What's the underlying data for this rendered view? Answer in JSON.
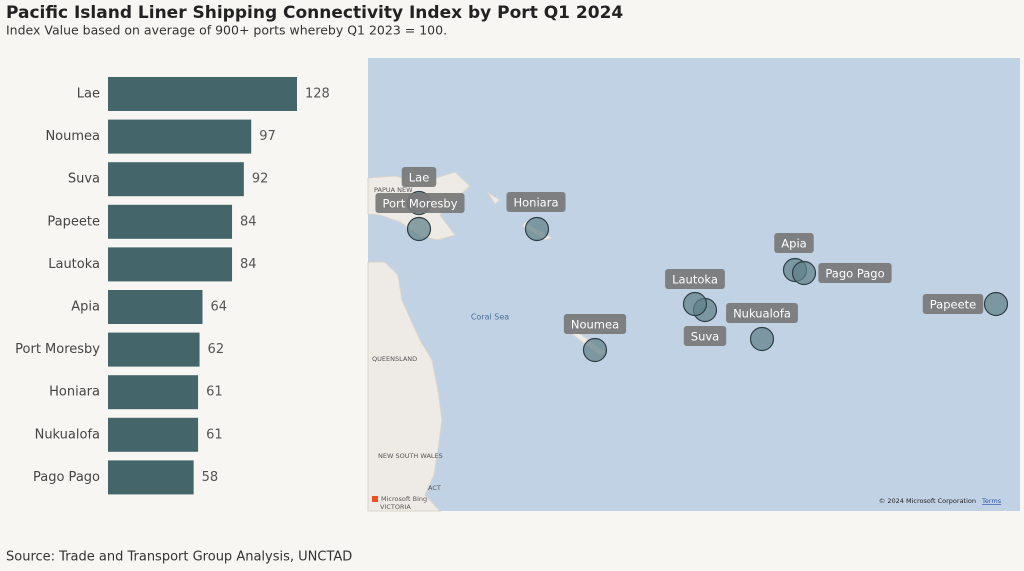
{
  "chart_data": {
    "type": "bar",
    "title": "Pacific Island Liner Shipping Connectivity Index by Port Q1 2024",
    "subtitle": "Index Value based on average of 900+ ports whereby Q1 2023 = 100.",
    "source": "Source: Trade and Transport Group Analysis, UNCTAD",
    "orientation": "horizontal",
    "categories": [
      "Lae",
      "Noumea",
      "Suva",
      "Papeete",
      "Lautoka",
      "Apia",
      "Port Moresby",
      "Honiara",
      "Nukualofa",
      "Pago Pago"
    ],
    "values": [
      128,
      97,
      92,
      84,
      84,
      64,
      62,
      61,
      61,
      58
    ],
    "color": "#44666b"
  },
  "map": {
    "places": [
      "PAPUA NEW",
      "Coral Sea",
      "QUEENSLAND",
      "NEW SOUTH WALES",
      "ACT",
      "VICTORIA"
    ],
    "logo": "Microsoft Bing",
    "attribution": "© 2024 Microsoft Corporation",
    "terms": "Terms"
  }
}
